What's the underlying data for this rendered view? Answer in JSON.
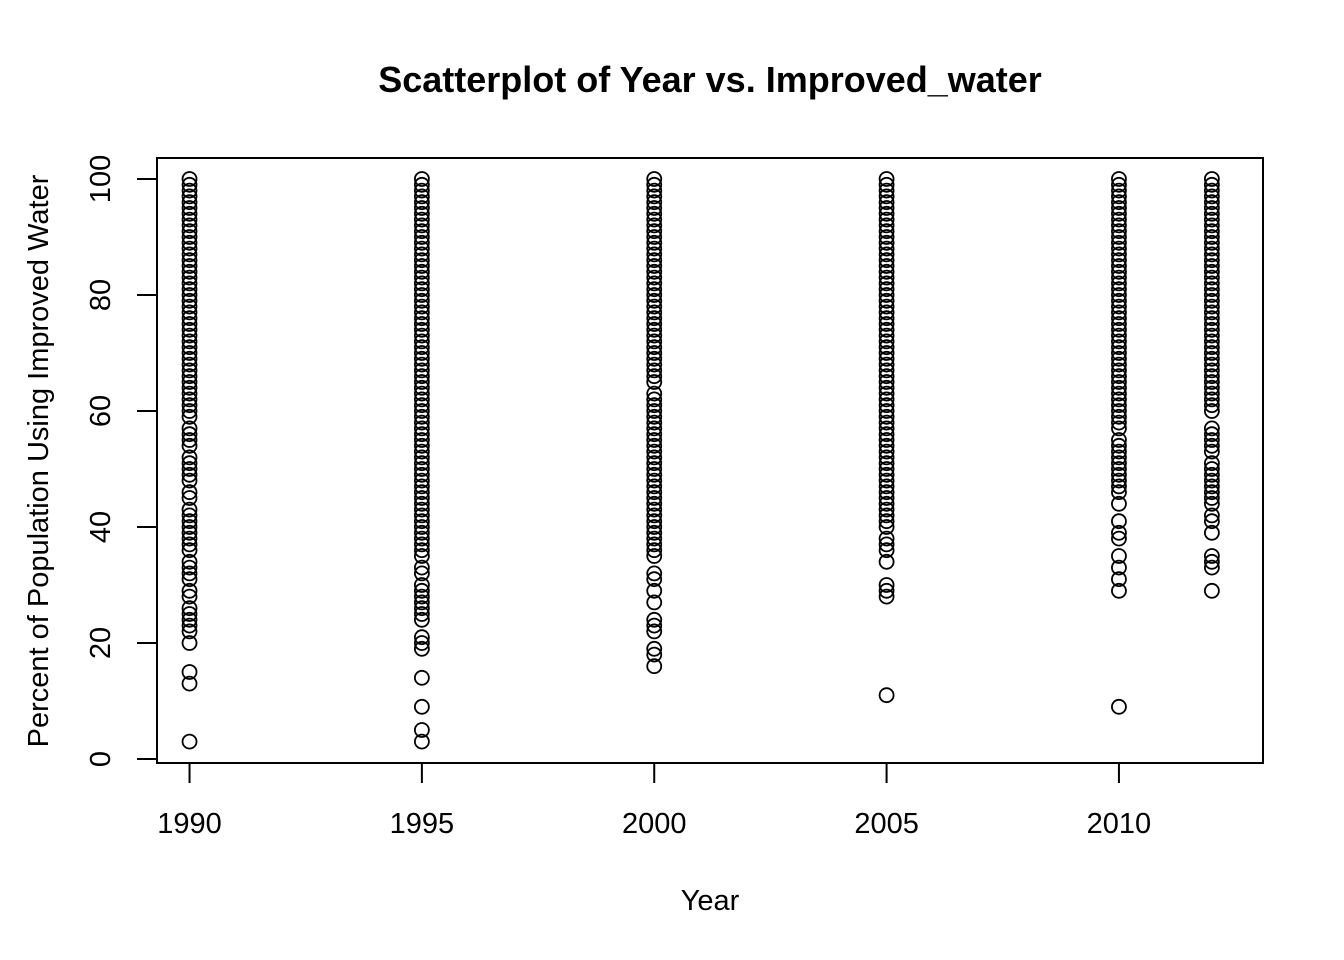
{
  "chart_data": {
    "type": "scatter",
    "title": "Scatterplot of Year vs. Improved_water",
    "xlabel": "Year",
    "ylabel": "Percent of Population Using Improved Water",
    "xlim": [
      1989.3,
      2013.1
    ],
    "ylim": [
      0,
      100
    ],
    "x_ticks": [
      1990,
      1995,
      2000,
      2005,
      2010
    ],
    "y_ticks": [
      0,
      20,
      40,
      60,
      80,
      100
    ],
    "grid": false,
    "marker": "open-circle",
    "colors": {
      "points": "#000000",
      "frame": "#000000",
      "background": "#ffffff"
    },
    "series": [
      {
        "x": 1990,
        "values": [
          100,
          99,
          98,
          97,
          96,
          95,
          94,
          93,
          92,
          91,
          90,
          89,
          88,
          87,
          86,
          85,
          84,
          83,
          82,
          81,
          80,
          79,
          78,
          77,
          76,
          75,
          74,
          73,
          72,
          71,
          70,
          69,
          68,
          67,
          66,
          65,
          64,
          63,
          62,
          61,
          60,
          59,
          57,
          56,
          55,
          54,
          52,
          51,
          50,
          49,
          48,
          46,
          45,
          43,
          42,
          41,
          40,
          39,
          38,
          37,
          36,
          34,
          33,
          32,
          31,
          29,
          28,
          26,
          25,
          24,
          23,
          22,
          20,
          15,
          13,
          3
        ]
      },
      {
        "x": 1995,
        "values": [
          100,
          99,
          98,
          97,
          96,
          95,
          94,
          93,
          92,
          91,
          90,
          89,
          88,
          87,
          86,
          85,
          84,
          83,
          82,
          81,
          80,
          79,
          78,
          77,
          76,
          75,
          74,
          73,
          72,
          71,
          70,
          69,
          68,
          67,
          66,
          65,
          64,
          63,
          62,
          61,
          60,
          59,
          58,
          57,
          56,
          55,
          54,
          53,
          52,
          51,
          50,
          49,
          48,
          47,
          46,
          45,
          44,
          43,
          42,
          41,
          40,
          39,
          38,
          37,
          36,
          35,
          33,
          32,
          30,
          29,
          28,
          27,
          26,
          25,
          24,
          21,
          20,
          19,
          14,
          9,
          5,
          3
        ]
      },
      {
        "x": 2000,
        "values": [
          100,
          99,
          98,
          97,
          96,
          95,
          94,
          93,
          92,
          91,
          90,
          89,
          88,
          87,
          86,
          85,
          84,
          83,
          82,
          81,
          80,
          79,
          78,
          77,
          76,
          75,
          74,
          73,
          72,
          71,
          70,
          69,
          68,
          67,
          66,
          65,
          63,
          62,
          61,
          60,
          59,
          58,
          57,
          56,
          55,
          54,
          53,
          52,
          51,
          50,
          49,
          48,
          47,
          46,
          45,
          44,
          43,
          42,
          41,
          40,
          39,
          38,
          37,
          36,
          35,
          32,
          31,
          29,
          27,
          24,
          23,
          22,
          19,
          18,
          16
        ]
      },
      {
        "x": 2005,
        "values": [
          100,
          99,
          98,
          97,
          96,
          95,
          94,
          93,
          92,
          91,
          90,
          89,
          88,
          87,
          86,
          85,
          84,
          83,
          82,
          81,
          80,
          79,
          78,
          77,
          76,
          75,
          74,
          73,
          72,
          71,
          70,
          69,
          68,
          67,
          66,
          65,
          64,
          63,
          62,
          61,
          60,
          59,
          58,
          57,
          56,
          55,
          54,
          53,
          52,
          51,
          50,
          49,
          48,
          47,
          46,
          45,
          44,
          43,
          42,
          41,
          40,
          38,
          37,
          36,
          34,
          30,
          29,
          28,
          11
        ]
      },
      {
        "x": 2010,
        "values": [
          100,
          99,
          98,
          97,
          96,
          95,
          94,
          93,
          92,
          91,
          90,
          89,
          88,
          87,
          86,
          85,
          84,
          83,
          82,
          81,
          80,
          79,
          78,
          77,
          76,
          75,
          74,
          73,
          72,
          71,
          70,
          69,
          68,
          67,
          66,
          65,
          64,
          63,
          62,
          61,
          60,
          59,
          58,
          57,
          55,
          54,
          53,
          52,
          51,
          50,
          49,
          48,
          47,
          46,
          44,
          41,
          39,
          38,
          35,
          33,
          31,
          29,
          9
        ]
      },
      {
        "x": 2012,
        "values": [
          100,
          99,
          98,
          97,
          96,
          95,
          94,
          93,
          92,
          91,
          90,
          89,
          88,
          87,
          86,
          85,
          84,
          83,
          82,
          81,
          80,
          79,
          78,
          77,
          76,
          75,
          74,
          73,
          72,
          71,
          70,
          69,
          68,
          67,
          66,
          65,
          64,
          63,
          62,
          61,
          60,
          57,
          56,
          55,
          54,
          53,
          51,
          50,
          49,
          48,
          47,
          46,
          45,
          44,
          42,
          41,
          39,
          35,
          34,
          33,
          29
        ]
      }
    ]
  }
}
